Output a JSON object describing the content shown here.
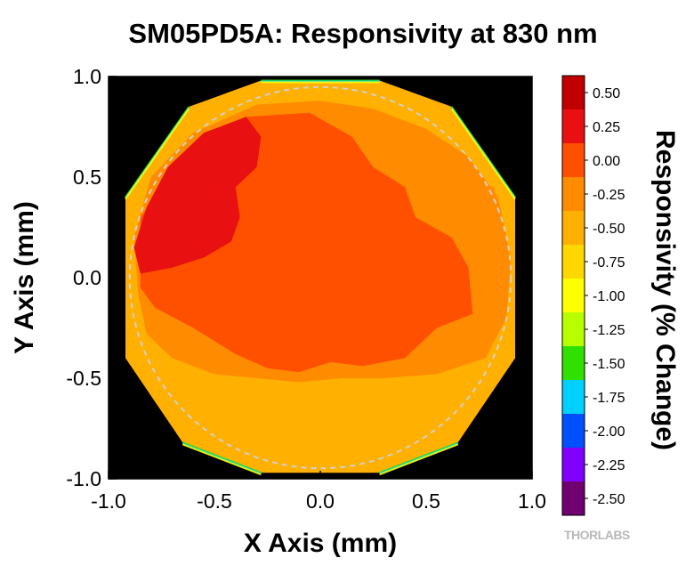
{
  "chart_data": {
    "type": "heatmap",
    "title": "SM05PD5A: Responsivity at 830 nm",
    "xlabel": "X Axis (mm)",
    "ylabel": "Y Axis (mm)",
    "xlim": [
      -1.0,
      1.0
    ],
    "ylim": [
      -1.0,
      1.0
    ],
    "x_ticks": [
      "-1.0",
      "-0.5",
      "0.0",
      "0.5",
      "1.0"
    ],
    "y_ticks": [
      "1.0",
      "0.5",
      "0.0",
      "-0.5",
      "-1.0"
    ],
    "background_color": "#000000",
    "aperture_outline": {
      "shape": "circle",
      "center": [
        0.0,
        0.0
      ],
      "radius": 0.9,
      "style": "dashed",
      "color": "#d0d0d0"
    },
    "colorbar": {
      "label": "Responsivity (% Change)",
      "levels": [
        "0.50",
        "0.25",
        "0.00",
        "-0.25",
        "-0.50",
        "-0.75",
        "-1.00",
        "-1.25",
        "-1.50",
        "-1.75",
        "-2.00",
        "-2.25",
        "-2.50"
      ],
      "colors": [
        "#c00000",
        "#e81010",
        "#ff5000",
        "#ff8c00",
        "#ffb000",
        "#ffd800",
        "#ffff00",
        "#b8ff00",
        "#30e000",
        "#00d0ff",
        "#0050ff",
        "#8000ff",
        "#700070"
      ]
    },
    "regions": [
      {
        "level": "-0.50",
        "shape": "detector-octagon"
      },
      {
        "level": "-0.25",
        "points": [
          [
            -0.86,
            -0.08
          ],
          [
            -0.82,
            -0.28
          ],
          [
            -0.7,
            -0.4
          ],
          [
            -0.5,
            -0.48
          ],
          [
            -0.3,
            -0.5
          ],
          [
            -0.1,
            -0.52
          ],
          [
            0.1,
            -0.5
          ],
          [
            0.3,
            -0.5
          ],
          [
            0.55,
            -0.48
          ],
          [
            0.78,
            -0.4
          ],
          [
            0.88,
            -0.2
          ],
          [
            0.9,
            0.1
          ],
          [
            0.84,
            0.4
          ],
          [
            0.7,
            0.6
          ],
          [
            0.5,
            0.74
          ],
          [
            0.25,
            0.84
          ],
          [
            0.0,
            0.88
          ],
          [
            -0.3,
            0.86
          ],
          [
            -0.6,
            0.72
          ],
          [
            -0.8,
            0.5
          ],
          [
            -0.88,
            0.2
          ]
        ]
      },
      {
        "level": "0.00",
        "points": [
          [
            -0.85,
            -0.05
          ],
          [
            -0.78,
            -0.15
          ],
          [
            -0.6,
            -0.25
          ],
          [
            -0.4,
            -0.38
          ],
          [
            -0.25,
            -0.45
          ],
          [
            -0.1,
            -0.47
          ],
          [
            0.05,
            -0.42
          ],
          [
            0.2,
            -0.44
          ],
          [
            0.4,
            -0.4
          ],
          [
            0.55,
            -0.25
          ],
          [
            0.72,
            -0.18
          ],
          [
            0.7,
            0.05
          ],
          [
            0.62,
            0.2
          ],
          [
            0.45,
            0.3
          ],
          [
            0.4,
            0.45
          ],
          [
            0.25,
            0.55
          ],
          [
            0.15,
            0.7
          ],
          [
            -0.05,
            0.82
          ],
          [
            -0.35,
            0.8
          ],
          [
            -0.65,
            0.6
          ],
          [
            -0.85,
            0.3
          ]
        ]
      },
      {
        "level": "-0.25",
        "points": [
          [
            0.6,
            0.42
          ],
          [
            0.75,
            0.35
          ],
          [
            0.86,
            0.25
          ],
          [
            0.82,
            0.45
          ],
          [
            0.7,
            0.5
          ]
        ]
      },
      {
        "level": "0.25",
        "points": [
          [
            -0.85,
            0.02
          ],
          [
            -0.7,
            0.05
          ],
          [
            -0.55,
            0.1
          ],
          [
            -0.42,
            0.18
          ],
          [
            -0.38,
            0.3
          ],
          [
            -0.4,
            0.45
          ],
          [
            -0.3,
            0.55
          ],
          [
            -0.28,
            0.7
          ],
          [
            -0.35,
            0.8
          ],
          [
            -0.55,
            0.72
          ],
          [
            -0.72,
            0.55
          ],
          [
            -0.82,
            0.35
          ],
          [
            -0.88,
            0.15
          ]
        ]
      },
      {
        "level": "-0.50",
        "points": [
          [
            0.03,
            -0.55
          ],
          [
            0.1,
            -0.5
          ],
          [
            0.15,
            -0.6
          ],
          [
            0.08,
            -0.68
          ],
          [
            0.02,
            -0.63
          ]
        ]
      }
    ]
  },
  "brand": {
    "logo_text": "THORLABS"
  }
}
